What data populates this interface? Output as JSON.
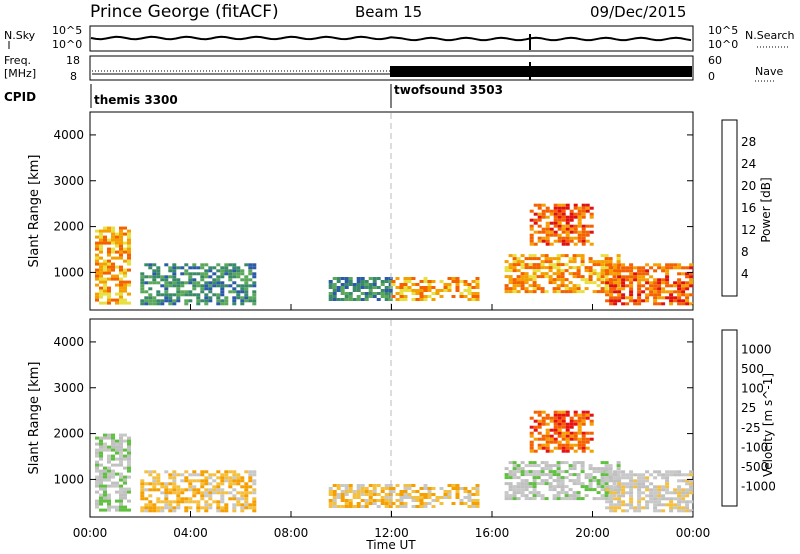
{
  "header": {
    "station": "Prince George (fitACF)",
    "beam": "Beam 15",
    "date": "09/Dec/2015"
  },
  "summary_panels": {
    "nsky_label": "N.Sky",
    "nsky_ticks": [
      "10^5",
      "10^0"
    ],
    "nsearch_label": "N.Search",
    "nsearch_ticks": [
      "10^5",
      "10^0"
    ],
    "freq_label_1": "Freq.",
    "freq_label_2": "[MHz]",
    "freq_ticks": [
      "18",
      "8"
    ],
    "nave_label": "Nave",
    "nave_ticks": [
      "60",
      "0"
    ],
    "cpid_label": "CPID",
    "cpid_segments": [
      {
        "name": "themis 3300",
        "start_hour": 0
      },
      {
        "name": "twofsound 3503",
        "start_hour": 12
      }
    ]
  },
  "colors": {
    "power_scale": [
      "#1a1aff",
      "#2a5aa8",
      "#3a8a6a",
      "#5aa85a",
      "#e8e040",
      "#f5a000",
      "#f56000",
      "#e01010"
    ],
    "velocity_scale": [
      "#2030b0",
      "#3050a0",
      "#3a8a6a",
      "#60c040",
      "#c0c0c0",
      "#c8c8c8",
      "#f5c040",
      "#f5a000",
      "#f56000",
      "#e81010"
    ]
  },
  "chart_data": [
    {
      "type": "heatmap",
      "panel": "power",
      "ylabel": "Slant Range [km]",
      "yticks": [
        "4000",
        "3000",
        "2000",
        "1000"
      ],
      "ylim": [
        180,
        4500
      ],
      "xlim": [
        0,
        24
      ],
      "colorbar_label": "Power [dB]",
      "colorbar_ticks": [
        "28",
        "24",
        "20",
        "16",
        "12",
        "8",
        "4"
      ],
      "regions": [
        {
          "x": [
            0.2,
            1.5
          ],
          "y": [
            300,
            2000
          ],
          "level": 5
        },
        {
          "x": [
            2.0,
            6.5
          ],
          "y": [
            300,
            1200
          ],
          "level": 2
        },
        {
          "x": [
            9.5,
            12.0
          ],
          "y": [
            400,
            900
          ],
          "level": 2
        },
        {
          "x": [
            12.0,
            15.5
          ],
          "y": [
            400,
            900
          ],
          "level": 5
        },
        {
          "x": [
            16.5,
            21.0
          ],
          "y": [
            600,
            1400
          ],
          "level": 5
        },
        {
          "x": [
            17.5,
            20.0
          ],
          "y": [
            1600,
            2500
          ],
          "level": 6
        },
        {
          "x": [
            20.5,
            24.0
          ],
          "y": [
            300,
            1200
          ],
          "level": 6
        }
      ]
    },
    {
      "type": "heatmap",
      "panel": "velocity",
      "ylabel": "Slant Range [km]",
      "yticks": [
        "4000",
        "3000",
        "2000",
        "1000"
      ],
      "ylim": [
        180,
        4500
      ],
      "xlim": [
        0,
        24
      ],
      "colorbar_label": "Velocity [m s^-1]",
      "colorbar_ticks": [
        "1000",
        "500",
        "100",
        "25",
        "-25",
        "-100",
        "-500",
        "-1000"
      ],
      "xticks": [
        "00:00",
        "04:00",
        "08:00",
        "12:00",
        "16:00",
        "20:00",
        "00:00"
      ],
      "xlabel": "Time UT",
      "regions": [
        {
          "x": [
            0.2,
            1.5
          ],
          "y": [
            300,
            2000
          ],
          "level": 4
        },
        {
          "x": [
            2.0,
            6.5
          ],
          "y": [
            300,
            1200
          ],
          "level": 6
        },
        {
          "x": [
            9.5,
            12.0
          ],
          "y": [
            400,
            900
          ],
          "level": 6
        },
        {
          "x": [
            12.0,
            15.5
          ],
          "y": [
            400,
            900
          ],
          "level": 6
        },
        {
          "x": [
            16.5,
            21.0
          ],
          "y": [
            600,
            1400
          ],
          "level": 4
        },
        {
          "x": [
            17.5,
            20.0
          ],
          "y": [
            1600,
            2500
          ],
          "level": 8
        },
        {
          "x": [
            20.5,
            24.0
          ],
          "y": [
            300,
            1200
          ],
          "level": 5
        }
      ]
    }
  ]
}
